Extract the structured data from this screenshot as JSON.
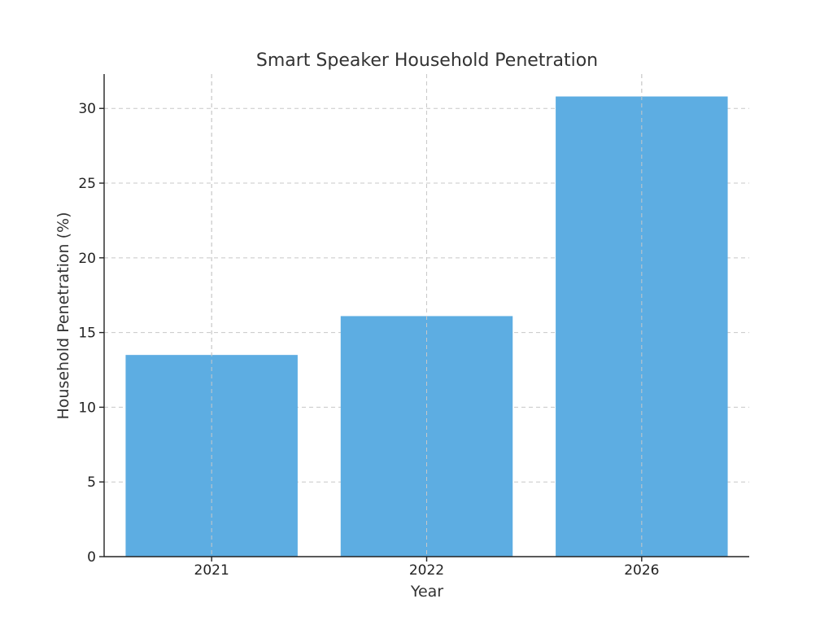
{
  "chart_data": {
    "type": "bar",
    "title": "Smart Speaker Household Penetration",
    "xlabel": "Year",
    "ylabel": "Household Penetration (%)",
    "categories": [
      "2021",
      "2022",
      "2026"
    ],
    "values": [
      13.5,
      16.1,
      30.8
    ],
    "ylim": [
      0,
      32.3
    ],
    "yticks": [
      0,
      5,
      10,
      15,
      20,
      25,
      30
    ],
    "grid": true,
    "bar_color": "#5DADE2"
  }
}
